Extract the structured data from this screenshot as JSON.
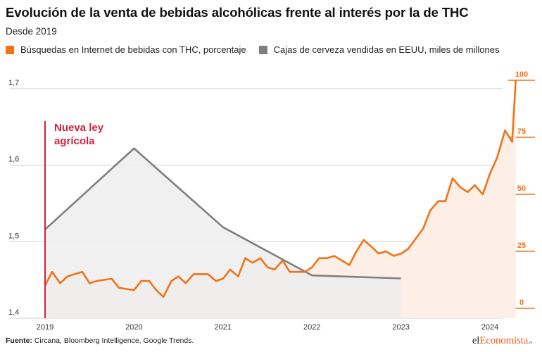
{
  "header": {
    "title": "Evolución de la venta de bebidas alcohólicas frente al interés por la de THC",
    "subtitle": "Desde 2019"
  },
  "footer": {
    "source_label": "Fuente:",
    "source_text": " Circana, Bloomberg Intelligence, Google Trends.",
    "logo_pre": "el",
    "logo_accent": "Economista",
    "logo_ext": ".es"
  },
  "colors": {
    "thc": "#f07318",
    "thc_fill": "#fdeee6",
    "beer": "#7f7f7f",
    "beer_fill": "#ededed",
    "annotation": "#d0233f",
    "grid": "#cfcfcf"
  },
  "chart_data": {
    "type": "line",
    "annotation": {
      "text_lines": [
        "Nueva ley",
        "agrícola"
      ],
      "x": 2019.0
    },
    "x_axis": {
      "range": [
        2018.9,
        2024.36
      ],
      "ticks": [
        2019,
        2020,
        2021,
        2022,
        2023,
        2024
      ],
      "tick_labels": [
        "2019",
        "2020",
        "2021",
        "2022",
        "2023",
        "2024"
      ]
    },
    "y_left": {
      "range": [
        1.4,
        1.7
      ],
      "ticks": [
        1.4,
        1.5,
        1.6,
        1.7
      ],
      "tick_labels": [
        "1,4",
        "1,5",
        "1,6",
        "1,7"
      ]
    },
    "y_right": {
      "range": [
        0,
        100
      ],
      "ticks": [
        0,
        25,
        50,
        75,
        100
      ],
      "tick_labels": [
        "0",
        "25",
        "50",
        "75",
        "100"
      ]
    },
    "grid": true,
    "legend_position": "top-left",
    "series": [
      {
        "name": "Búsquedas en Internet de bebidas con THC, porcentaje",
        "axis": "right",
        "x": [
          2019.0,
          2019.08,
          2019.17,
          2019.25,
          2019.42,
          2019.5,
          2019.58,
          2019.75,
          2019.83,
          2020.0,
          2020.08,
          2020.17,
          2020.25,
          2020.33,
          2020.42,
          2020.5,
          2020.58,
          2020.67,
          2020.83,
          2020.92,
          2021.0,
          2021.08,
          2021.17,
          2021.25,
          2021.33,
          2021.42,
          2021.5,
          2021.58,
          2021.67,
          2021.75,
          2021.83,
          2021.92,
          2022.0,
          2022.08,
          2022.17,
          2022.25,
          2022.42,
          2022.5,
          2022.58,
          2022.67,
          2022.75,
          2022.83,
          2022.92,
          2023.0,
          2023.08,
          2023.25,
          2023.33,
          2023.42,
          2023.5,
          2023.58,
          2023.67,
          2023.75,
          2023.83,
          2023.92,
          2024.0,
          2024.08,
          2024.17,
          2024.25,
          2024.29
        ],
        "y": [
          10,
          16,
          11,
          14,
          16,
          11,
          12,
          13,
          9,
          8,
          12,
          12,
          8,
          5,
          12,
          14,
          11,
          15,
          15,
          12,
          13,
          17,
          14,
          22,
          20,
          22,
          18,
          17,
          21,
          16,
          16,
          16,
          18,
          22,
          22,
          23,
          19,
          25,
          30,
          27,
          24,
          25,
          23,
          24,
          26,
          35,
          43,
          47,
          47,
          57,
          53,
          51,
          54,
          50,
          59,
          66,
          78,
          73,
          100
        ]
      },
      {
        "name": "Cajas de cerveza vendidas en EEUU, miles de millones",
        "axis": "left",
        "x": [
          2019.0,
          2020.0,
          2021.0,
          2022.0,
          2023.0
        ],
        "y": [
          1.516,
          1.622,
          1.519,
          1.456,
          1.452
        ]
      }
    ]
  }
}
